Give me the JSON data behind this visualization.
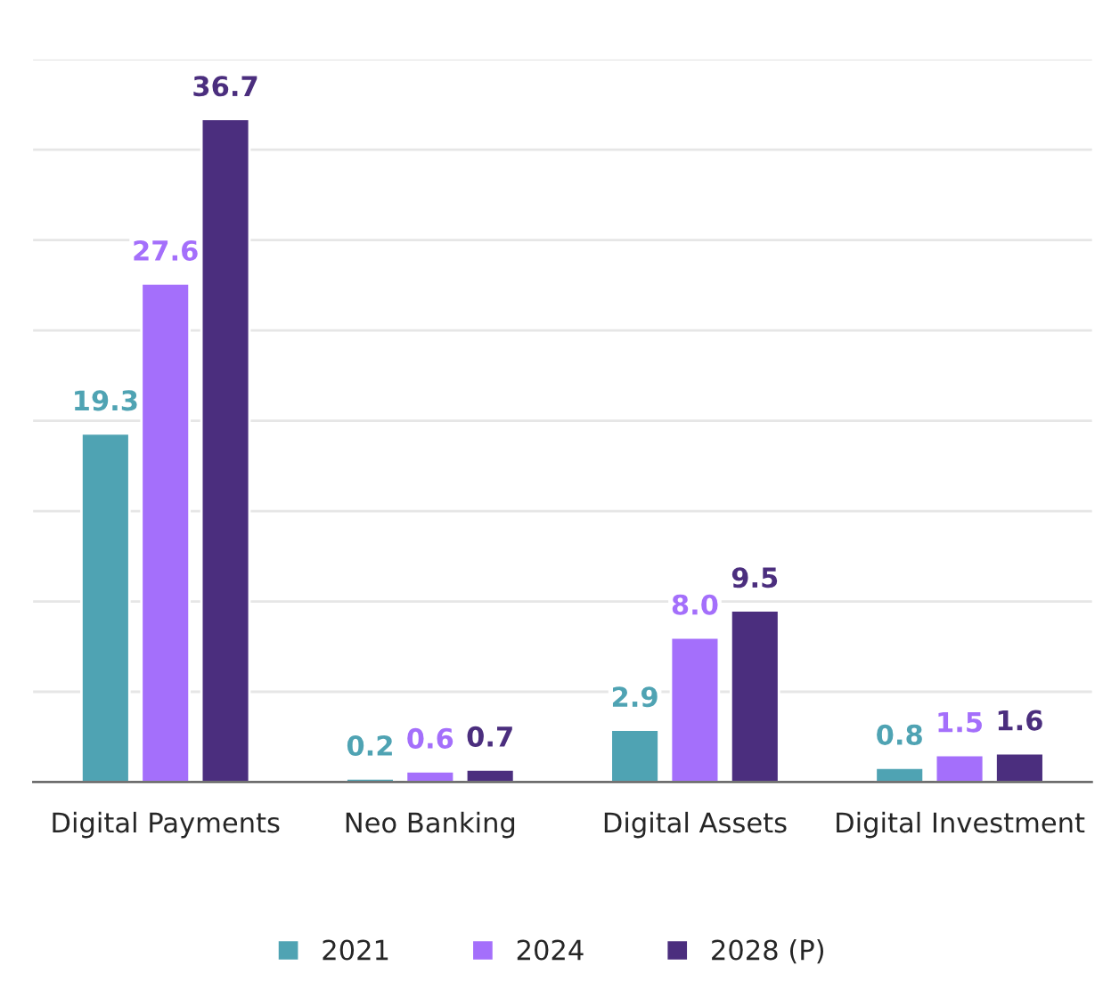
{
  "chart_data": {
    "type": "bar",
    "categories": [
      "Digital Payments",
      "Neo Banking",
      "Digital Assets",
      "Digital Investment"
    ],
    "series": [
      {
        "name": "2021",
        "color": "#4fa3b3",
        "values": [
          19.3,
          0.2,
          2.9,
          0.8
        ],
        "value_labels": [
          "19.3",
          "0.2",
          "2.9",
          "0.8"
        ]
      },
      {
        "name": "2024",
        "color": "#a46ffb",
        "values": [
          27.6,
          0.6,
          8.0,
          1.5
        ],
        "value_labels": [
          "27.6",
          "0.6",
          "8.0",
          "1.5"
        ]
      },
      {
        "name": "2028 (P)",
        "color": "#4b2e7e",
        "values": [
          36.7,
          0.7,
          9.5,
          1.6
        ],
        "value_labels": [
          "36.7",
          "0.7",
          "9.5",
          "1.6"
        ]
      }
    ],
    "ylim": [
      0,
      40
    ],
    "yticks": [
      {
        "value": 0,
        "label": null
      },
      {
        "value": 5,
        "label": null
      },
      {
        "value": 10,
        "label": null
      },
      {
        "value": 15,
        "label": null
      },
      {
        "value": 20,
        "label": null
      },
      {
        "value": 25,
        "label": null
      },
      {
        "value": 30,
        "label": null
      },
      {
        "value": 35,
        "label": null
      },
      {
        "value": 40,
        "label": null
      }
    ],
    "tick_labels": "x",
    "grid": "y",
    "legend": "bottom"
  }
}
